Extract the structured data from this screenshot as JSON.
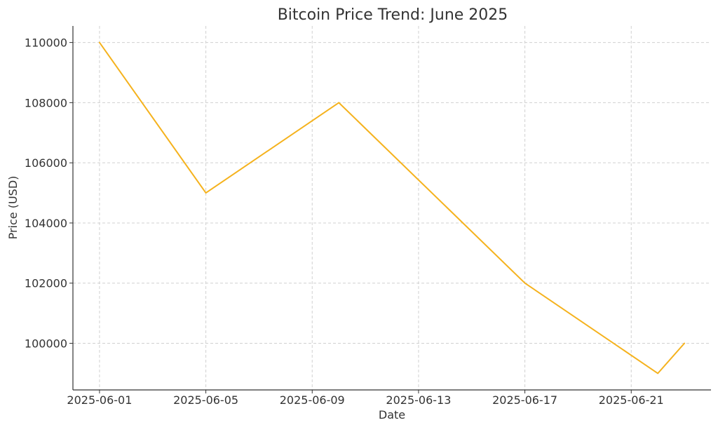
{
  "chart_data": {
    "type": "line",
    "title": "Bitcoin Price Trend: June 2025",
    "xlabel": "Date",
    "ylabel": "Price (USD)",
    "x": [
      "2025-06-01",
      "2025-06-05",
      "2025-06-10",
      "2025-06-17",
      "2025-06-22",
      "2025-06-23"
    ],
    "series": [
      {
        "values": [
          110000,
          105000,
          108000,
          102000,
          99000,
          100000
        ],
        "color": "#f5b21d"
      }
    ],
    "xlim": [
      "2025-05-31",
      "2025-06-24"
    ],
    "ylim": [
      98450,
      110550
    ],
    "x_ticks": [
      "2025-06-01",
      "2025-06-05",
      "2025-06-09",
      "2025-06-13",
      "2025-06-17",
      "2025-06-21"
    ],
    "y_ticks": [
      "100000",
      "102000",
      "104000",
      "106000",
      "108000",
      "110000"
    ],
    "grid": true,
    "legend": "none"
  }
}
